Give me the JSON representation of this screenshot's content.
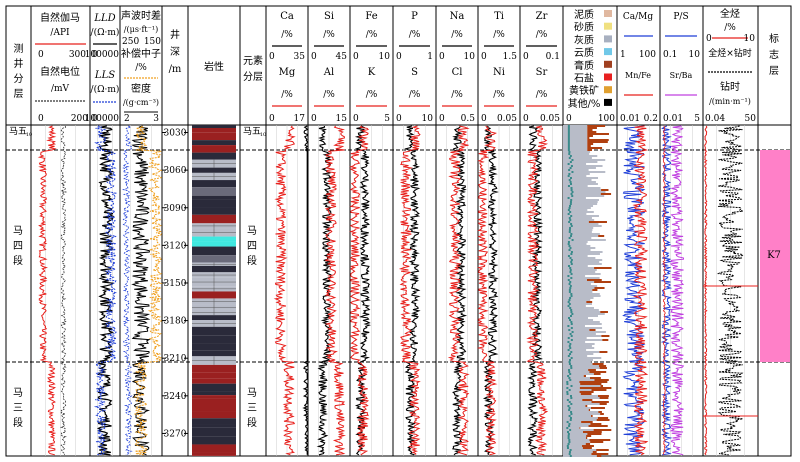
{
  "header": {
    "strat_col": [
      "测",
      "井",
      "分",
      "层"
    ],
    "gr_title": "自然伽马",
    "gr_unit": "/API",
    "gr_range": [
      "0",
      "300"
    ],
    "sp_title": "自然电位",
    "sp_unit": "/mV",
    "sp_range": [
      "0",
      "200"
    ],
    "lld_title": "LLD",
    "lld_unit": "/(Ω·m)",
    "lld_range": [
      "0",
      "100000"
    ],
    "lls_title": "LLS",
    "lls_unit": "/(Ω·m)",
    "lls_range": [
      "0",
      "100000"
    ],
    "ac_title": "声波时差",
    "ac_unit": "/(μs·ft⁻¹)",
    "ac_range": [
      "250",
      "150"
    ],
    "cnl_title": "补偿中子",
    "cnl_unit": "/%",
    "den_title": "密度",
    "den_unit": "/(g·cm⁻³)",
    "den_range": [
      "2",
      "3"
    ],
    "depth_title": [
      "井",
      "深",
      "/m"
    ],
    "lith_title": "岩性",
    "elem_title": [
      "元素",
      "分层"
    ],
    "elements": [
      {
        "top": "Ca",
        "bot": "Mg",
        "unit": "/%",
        "range": [
          "0",
          "35"
        ],
        "range2": [
          "0",
          "17"
        ]
      },
      {
        "top": "Si",
        "bot": "Al",
        "unit": "/%",
        "range": [
          "0",
          "45"
        ],
        "range2": [
          "0",
          "15"
        ]
      },
      {
        "top": "Fe",
        "bot": "K",
        "unit": "/%",
        "range": [
          "0",
          "10"
        ],
        "range2": [
          "0",
          "5"
        ]
      },
      {
        "top": "P",
        "bot": "S",
        "unit": "/%",
        "range": [
          "0",
          "1"
        ],
        "range2": [
          "0",
          "10"
        ]
      },
      {
        "top": "Na",
        "bot": "Cl",
        "unit": "/%",
        "range": [
          "0",
          "10"
        ],
        "range2": [
          "0",
          "0.5"
        ]
      },
      {
        "top": "Ti",
        "bot": "Ni",
        "unit": "/%",
        "range": [
          "0",
          "1.5"
        ],
        "range2": [
          "0",
          "0.05"
        ]
      },
      {
        "top": "Zr",
        "bot": "Sr",
        "unit": "/%",
        "range": [
          "0",
          "0.1"
        ],
        "range2": [
          "0",
          "0.05"
        ]
      }
    ],
    "mineral_legend": [
      "泥质",
      "砂质",
      "灰质",
      "云质",
      "膏质",
      "石盐",
      "黄铁矿",
      "其他/%"
    ],
    "mineral_range": [
      "0",
      "100"
    ],
    "ratio1": {
      "top": "Ca/Mg",
      "bot": "Mn/Fe",
      "range": [
        "1",
        "100"
      ],
      "range2": [
        "0.01",
        "0.2"
      ]
    },
    "ratio2": {
      "top": "P/S",
      "bot": "Sr/Ba",
      "range": [
        "0.1",
        "10"
      ],
      "range2": [
        "0.01",
        "5"
      ]
    },
    "gas": {
      "t1": "全烃",
      "u1": "/%",
      "r1": [
        "0",
        "10"
      ],
      "t2": "全烃×钻时",
      "t3": "钻时",
      "u3": "/(min·m⁻¹)",
      "r3": [
        "0.04",
        "50"
      ]
    },
    "marker_title": [
      "标",
      "志",
      "层"
    ]
  },
  "depth_ticks": [
    "3030",
    "3060",
    "3090",
    "3120",
    "3150",
    "3180",
    "3210",
    "3240",
    "3270"
  ],
  "layers": {
    "ma5": "马五",
    "ma5_sub": "10",
    "ma4": [
      "马",
      "四",
      "段"
    ],
    "ma3": [
      "马",
      "三",
      "段"
    ]
  },
  "marker_label": "K7",
  "colors": {
    "red": "#e8201c",
    "blue": "#1f3fd8",
    "orange": "#f0a020",
    "pink": "#ff80c8",
    "cyan": "#40e8e0",
    "brown": "#b04010",
    "purple": "#c040e0",
    "lith_dark": "#2a2a3a",
    "lith_grey": "#b8bcc8",
    "lith_red": "#9a2020"
  }
}
